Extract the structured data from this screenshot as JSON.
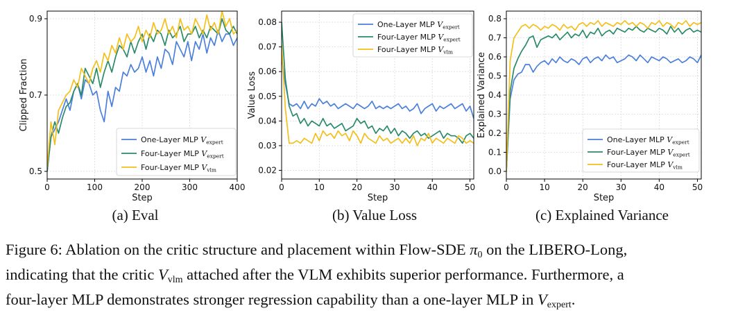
{
  "subcaptions": [
    "(a) Eval",
    "(b) Value Loss",
    "(c) Explained Variance"
  ],
  "figure_caption": {
    "label": "Figure 6:",
    "line1_a": "Ablation on the critic structure and placement within Flow-SDE",
    "pi_symbol": "π",
    "pi_sub": "0",
    "line1_b": "on the LIBERO-Long,",
    "line2_a": "indicating that the critic",
    "v": "V",
    "vlm": "vlm",
    "line2_b": "attached after the VLM exhibits superior performance. Furthermore, a",
    "line3_a": "four-layer MLP demonstrates stronger regression capability than a one-layer MLP in",
    "expert": "expert",
    "line3_b": "."
  },
  "colors": {
    "one_layer": "#4a7fdc",
    "four_layer_expert": "#2a8a6a",
    "four_layer_vlm": "#f3bf1a"
  },
  "chart_data": [
    {
      "type": "line",
      "title": "(a) Eval",
      "xlabel": "Step",
      "ylabel": "Clipped Fraction",
      "xlim": [
        0,
        400
      ],
      "ylim": [
        0.48,
        0.92
      ],
      "xticks": [
        0,
        100,
        200,
        300,
        400
      ],
      "yticks": [
        0.5,
        0.7,
        0.9
      ],
      "ytick_labels": [
        "0.5",
        "0.7",
        "0.9"
      ],
      "legend": "bottom-right",
      "series": [
        {
          "name": "One-Layer MLP",
          "sub": "expert",
          "x": [
            0,
            8,
            16,
            24,
            32,
            40,
            48,
            56,
            64,
            72,
            80,
            88,
            96,
            104,
            112,
            120,
            128,
            136,
            144,
            152,
            160,
            168,
            176,
            184,
            192,
            200,
            208,
            216,
            224,
            232,
            240,
            248,
            256,
            264,
            272,
            280,
            288,
            296,
            304,
            312,
            320,
            328,
            336,
            344,
            352,
            360,
            368,
            376,
            384,
            392,
            400
          ],
          "y": [
            0.5,
            0.59,
            0.61,
            0.63,
            0.66,
            0.69,
            0.66,
            0.71,
            0.73,
            0.69,
            0.74,
            0.73,
            0.7,
            0.71,
            0.66,
            0.63,
            0.71,
            0.67,
            0.72,
            0.71,
            0.76,
            0.75,
            0.78,
            0.76,
            0.77,
            0.8,
            0.76,
            0.79,
            0.75,
            0.8,
            0.77,
            0.82,
            0.81,
            0.78,
            0.84,
            0.82,
            0.8,
            0.84,
            0.79,
            0.84,
            0.82,
            0.86,
            0.81,
            0.85,
            0.83,
            0.87,
            0.84,
            0.86,
            0.86,
            0.83,
            0.85
          ]
        },
        {
          "name": "Four-Layer MLP",
          "sub": "expert",
          "x": [
            0,
            8,
            16,
            24,
            32,
            40,
            48,
            56,
            64,
            72,
            80,
            88,
            96,
            104,
            112,
            120,
            128,
            136,
            144,
            152,
            160,
            168,
            176,
            184,
            192,
            200,
            208,
            216,
            224,
            232,
            240,
            248,
            256,
            264,
            272,
            280,
            288,
            296,
            304,
            312,
            320,
            328,
            336,
            344,
            352,
            360,
            368,
            376,
            384,
            392,
            400
          ],
          "y": [
            0.5,
            0.59,
            0.63,
            0.6,
            0.64,
            0.67,
            0.68,
            0.71,
            0.73,
            0.7,
            0.77,
            0.75,
            0.73,
            0.77,
            0.72,
            0.76,
            0.79,
            0.76,
            0.8,
            0.83,
            0.82,
            0.8,
            0.84,
            0.81,
            0.84,
            0.86,
            0.82,
            0.86,
            0.84,
            0.87,
            0.86,
            0.83,
            0.87,
            0.85,
            0.86,
            0.88,
            0.84,
            0.86,
            0.86,
            0.88,
            0.85,
            0.87,
            0.85,
            0.88,
            0.87,
            0.86,
            0.9,
            0.87,
            0.86,
            0.88,
            0.86
          ]
        },
        {
          "name": "Four-Layer MLP",
          "sub": "vlm",
          "x": [
            0,
            8,
            16,
            24,
            32,
            40,
            48,
            56,
            64,
            72,
            80,
            88,
            96,
            104,
            112,
            120,
            128,
            136,
            144,
            152,
            160,
            168,
            176,
            184,
            192,
            200,
            208,
            216,
            224,
            232,
            240,
            248,
            256,
            264,
            272,
            280,
            288,
            296,
            304,
            312,
            320,
            328,
            336,
            344,
            352,
            360,
            368,
            376,
            384,
            392,
            400
          ],
          "y": [
            0.51,
            0.63,
            0.57,
            0.66,
            0.68,
            0.7,
            0.71,
            0.74,
            0.72,
            0.77,
            0.75,
            0.73,
            0.77,
            0.79,
            0.76,
            0.81,
            0.79,
            0.83,
            0.81,
            0.85,
            0.82,
            0.86,
            0.84,
            0.85,
            0.88,
            0.84,
            0.87,
            0.85,
            0.89,
            0.86,
            0.87,
            0.9,
            0.86,
            0.88,
            0.85,
            0.9,
            0.87,
            0.88,
            0.86,
            0.9,
            0.88,
            0.86,
            0.91,
            0.87,
            0.89,
            0.86,
            0.92,
            0.88,
            0.9,
            0.86,
            0.87
          ]
        }
      ]
    },
    {
      "type": "line",
      "title": "(b) Value Loss",
      "xlabel": "Step",
      "ylabel": "Value Loss",
      "xlim": [
        0,
        51
      ],
      "ylim": [
        0.0165,
        0.0845
      ],
      "xticks": [
        0,
        10,
        20,
        30,
        40,
        50
      ],
      "yticks": [
        0.02,
        0.03,
        0.04,
        0.05,
        0.06,
        0.07,
        0.08
      ],
      "ytick_labels": [
        "0.02",
        "0.03",
        "0.04",
        "0.05",
        "0.06",
        "0.07",
        "0.08"
      ],
      "legend": "top-right",
      "series": [
        {
          "name": "One-Layer MLP",
          "sub": "expert",
          "x": [
            0,
            1,
            2,
            3,
            4,
            5,
            6,
            7,
            8,
            9,
            10,
            11,
            12,
            13,
            14,
            15,
            16,
            17,
            18,
            19,
            20,
            21,
            22,
            23,
            24,
            25,
            26,
            27,
            28,
            29,
            30,
            31,
            32,
            33,
            34,
            35,
            36,
            37,
            38,
            39,
            40,
            41,
            42,
            43,
            44,
            45,
            46,
            47,
            48,
            49,
            50,
            51
          ],
          "y": [
            0.066,
            0.055,
            0.047,
            0.046,
            0.047,
            0.045,
            0.048,
            0.045,
            0.047,
            0.046,
            0.049,
            0.047,
            0.048,
            0.046,
            0.047,
            0.045,
            0.046,
            0.047,
            0.046,
            0.045,
            0.047,
            0.046,
            0.045,
            0.046,
            0.048,
            0.045,
            0.046,
            0.045,
            0.046,
            0.045,
            0.046,
            0.047,
            0.045,
            0.046,
            0.044,
            0.045,
            0.047,
            0.043,
            0.045,
            0.046,
            0.047,
            0.044,
            0.046,
            0.045,
            0.046,
            0.047,
            0.045,
            0.046,
            0.047,
            0.044,
            0.046,
            0.041
          ]
        },
        {
          "name": "Four-Layer MLP",
          "sub": "expert",
          "x": [
            0,
            1,
            2,
            3,
            4,
            5,
            6,
            7,
            8,
            9,
            10,
            11,
            12,
            13,
            14,
            15,
            16,
            17,
            18,
            19,
            20,
            21,
            22,
            23,
            24,
            25,
            26,
            27,
            28,
            29,
            30,
            31,
            32,
            33,
            34,
            35,
            36,
            37,
            38,
            39,
            40,
            41,
            42,
            43,
            44,
            45,
            46,
            47,
            48,
            49,
            50,
            51
          ],
          "y": [
            0.08,
            0.057,
            0.046,
            0.042,
            0.043,
            0.039,
            0.041,
            0.038,
            0.04,
            0.039,
            0.038,
            0.041,
            0.038,
            0.039,
            0.037,
            0.038,
            0.039,
            0.036,
            0.037,
            0.038,
            0.041,
            0.039,
            0.04,
            0.037,
            0.038,
            0.035,
            0.037,
            0.036,
            0.038,
            0.035,
            0.037,
            0.034,
            0.036,
            0.035,
            0.033,
            0.035,
            0.036,
            0.034,
            0.035,
            0.033,
            0.034,
            0.035,
            0.036,
            0.033,
            0.035,
            0.034,
            0.034,
            0.033,
            0.031,
            0.034,
            0.035,
            0.033
          ]
        },
        {
          "name": "Four-Layer MLP",
          "sub": "vlm",
          "x": [
            0,
            1,
            2,
            3,
            4,
            5,
            6,
            7,
            8,
            9,
            10,
            11,
            12,
            13,
            14,
            15,
            16,
            17,
            18,
            19,
            20,
            21,
            22,
            23,
            24,
            25,
            26,
            27,
            28,
            29,
            30,
            31,
            32,
            33,
            34,
            35,
            36,
            37,
            38,
            39,
            40,
            41,
            42,
            43,
            44,
            45,
            46,
            47,
            48,
            49,
            50,
            51
          ],
          "y": [
            0.071,
            0.045,
            0.031,
            0.031,
            0.032,
            0.031,
            0.033,
            0.032,
            0.031,
            0.035,
            0.032,
            0.036,
            0.034,
            0.035,
            0.033,
            0.036,
            0.034,
            0.035,
            0.032,
            0.036,
            0.034,
            0.031,
            0.035,
            0.033,
            0.032,
            0.031,
            0.034,
            0.032,
            0.033,
            0.031,
            0.032,
            0.033,
            0.031,
            0.033,
            0.031,
            0.034,
            0.03,
            0.033,
            0.032,
            0.035,
            0.031,
            0.033,
            0.032,
            0.031,
            0.033,
            0.032,
            0.031,
            0.034,
            0.033,
            0.031,
            0.032,
            0.031
          ]
        }
      ]
    },
    {
      "type": "line",
      "title": "(c) Explained Variance",
      "xlabel": "Step",
      "ylabel": "Explained Variance",
      "xlim": [
        0,
        51
      ],
      "ylim": [
        -0.04,
        0.84
      ],
      "xticks": [
        0,
        10,
        20,
        30,
        40,
        50
      ],
      "yticks": [
        0.0,
        0.1,
        0.2,
        0.3,
        0.4,
        0.5,
        0.6,
        0.7,
        0.8
      ],
      "ytick_labels": [
        "0.0",
        "0.1",
        "0.2",
        "0.3",
        "0.4",
        "0.5",
        "0.6",
        "0.7",
        "0.8"
      ],
      "legend": "bottom-right",
      "series": [
        {
          "name": "One-Layer MLP",
          "sub": "expert",
          "x": [
            0,
            1,
            2,
            3,
            4,
            5,
            6,
            7,
            8,
            9,
            10,
            11,
            12,
            13,
            14,
            15,
            16,
            17,
            18,
            19,
            20,
            21,
            22,
            23,
            24,
            25,
            26,
            27,
            28,
            29,
            30,
            31,
            32,
            33,
            34,
            35,
            36,
            37,
            38,
            39,
            40,
            41,
            42,
            43,
            44,
            45,
            46,
            47,
            48,
            49,
            50,
            51
          ],
          "y": [
            0.0,
            0.38,
            0.48,
            0.51,
            0.52,
            0.56,
            0.56,
            0.52,
            0.55,
            0.57,
            0.58,
            0.56,
            0.59,
            0.57,
            0.6,
            0.58,
            0.57,
            0.59,
            0.58,
            0.56,
            0.59,
            0.6,
            0.57,
            0.59,
            0.6,
            0.58,
            0.61,
            0.59,
            0.6,
            0.57,
            0.58,
            0.59,
            0.61,
            0.6,
            0.58,
            0.61,
            0.59,
            0.57,
            0.6,
            0.59,
            0.58,
            0.6,
            0.59,
            0.57,
            0.58,
            0.59,
            0.57,
            0.58,
            0.6,
            0.59,
            0.57,
            0.61
          ]
        },
        {
          "name": "Four-Layer MLP",
          "sub": "expert",
          "x": [
            0,
            1,
            2,
            3,
            4,
            5,
            6,
            7,
            8,
            9,
            10,
            11,
            12,
            13,
            14,
            15,
            16,
            17,
            18,
            19,
            20,
            21,
            22,
            23,
            24,
            25,
            26,
            27,
            28,
            29,
            30,
            31,
            32,
            33,
            34,
            35,
            36,
            37,
            38,
            39,
            40,
            41,
            42,
            43,
            44,
            45,
            46,
            47,
            48,
            49,
            50,
            51
          ],
          "y": [
            0.0,
            0.42,
            0.54,
            0.59,
            0.63,
            0.66,
            0.7,
            0.71,
            0.65,
            0.69,
            0.7,
            0.71,
            0.7,
            0.72,
            0.69,
            0.71,
            0.73,
            0.7,
            0.72,
            0.71,
            0.74,
            0.7,
            0.73,
            0.72,
            0.75,
            0.71,
            0.73,
            0.74,
            0.72,
            0.75,
            0.74,
            0.73,
            0.75,
            0.74,
            0.76,
            0.74,
            0.73,
            0.75,
            0.74,
            0.73,
            0.75,
            0.74,
            0.72,
            0.76,
            0.73,
            0.75,
            0.72,
            0.74,
            0.75,
            0.73,
            0.74,
            0.73
          ]
        },
        {
          "name": "Four-Layer MLP",
          "sub": "vlm",
          "x": [
            0,
            1,
            2,
            3,
            4,
            5,
            6,
            7,
            8,
            9,
            10,
            11,
            12,
            13,
            14,
            15,
            16,
            17,
            18,
            19,
            20,
            21,
            22,
            23,
            24,
            25,
            26,
            27,
            28,
            29,
            30,
            31,
            32,
            33,
            34,
            35,
            36,
            37,
            38,
            39,
            40,
            41,
            42,
            43,
            44,
            45,
            46,
            47,
            48,
            49,
            50,
            51
          ],
          "y": [
            0.0,
            0.58,
            0.7,
            0.73,
            0.76,
            0.77,
            0.75,
            0.77,
            0.76,
            0.74,
            0.76,
            0.75,
            0.77,
            0.76,
            0.74,
            0.77,
            0.75,
            0.76,
            0.74,
            0.77,
            0.78,
            0.76,
            0.78,
            0.77,
            0.79,
            0.76,
            0.78,
            0.77,
            0.76,
            0.78,
            0.77,
            0.79,
            0.77,
            0.78,
            0.76,
            0.78,
            0.77,
            0.75,
            0.78,
            0.77,
            0.79,
            0.76,
            0.78,
            0.77,
            0.75,
            0.78,
            0.77,
            0.79,
            0.76,
            0.78,
            0.77,
            0.78
          ]
        }
      ]
    }
  ]
}
